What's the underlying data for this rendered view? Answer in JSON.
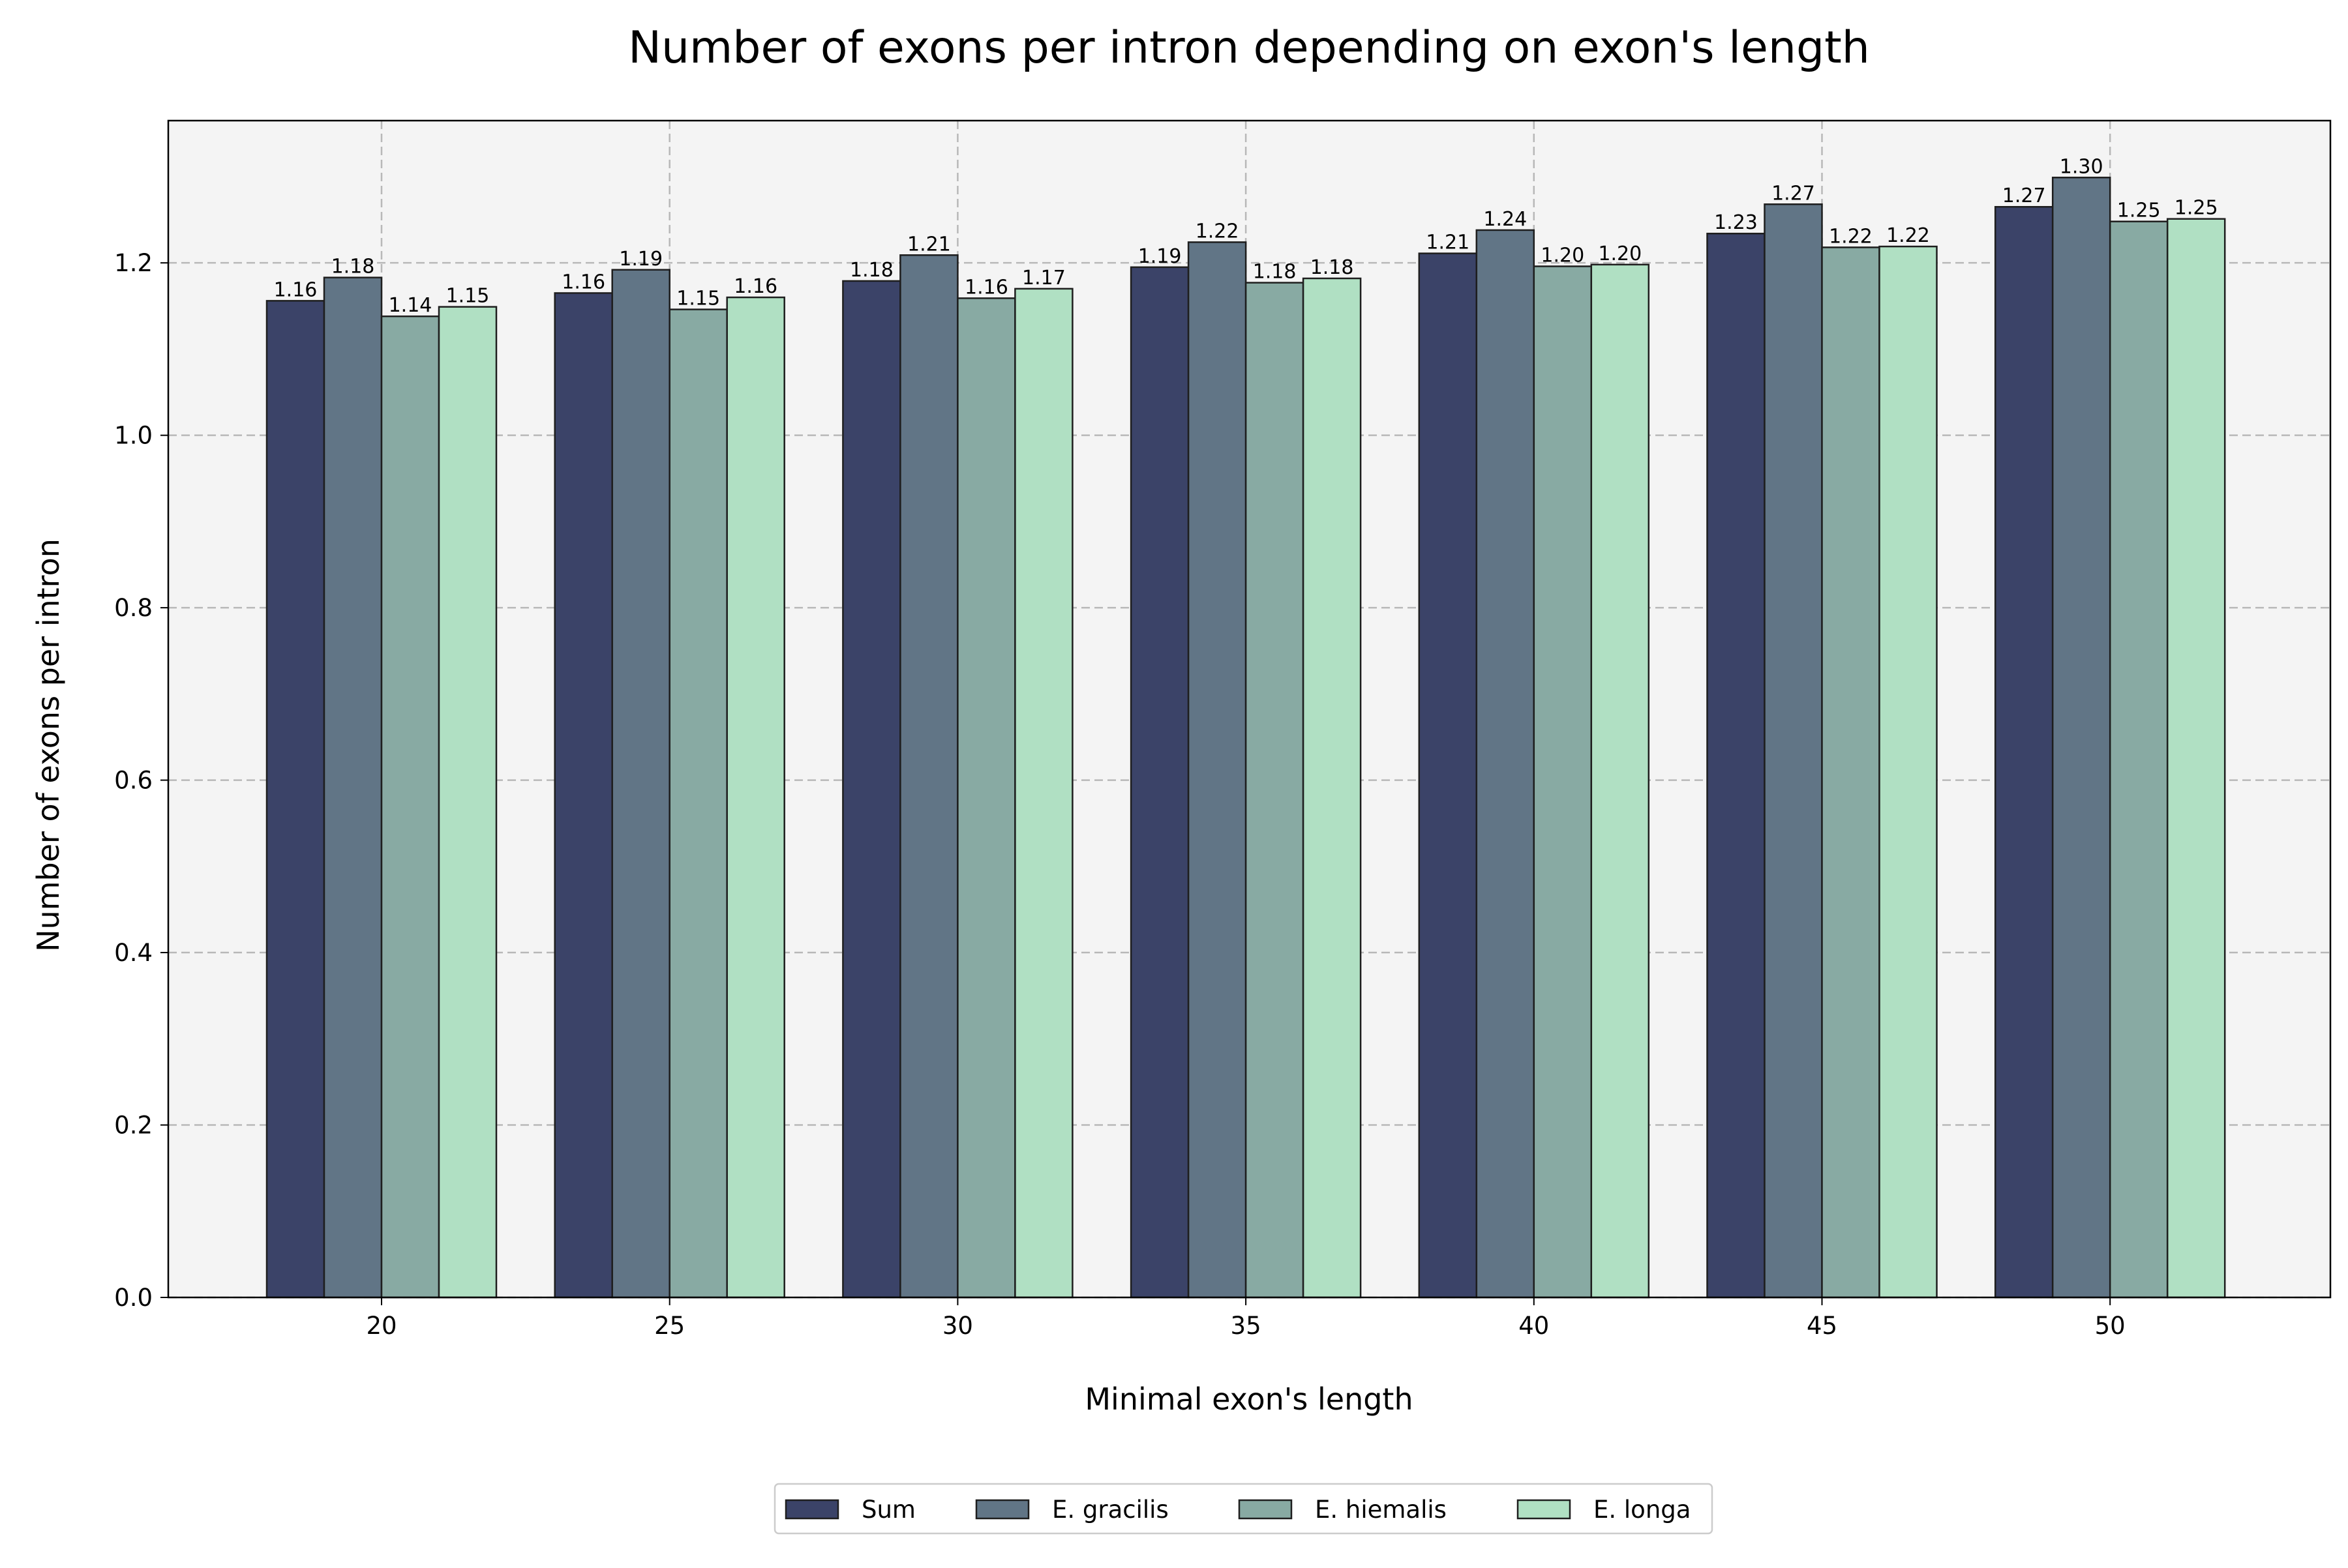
{
  "chart_data": {
    "type": "bar",
    "title": "Number of exons per intron depending on exon's length",
    "xlabel": "Minimal exon's length",
    "ylabel": "Number of exons per intron",
    "categories": [
      "20",
      "25",
      "30",
      "35",
      "40",
      "45",
      "50"
    ],
    "ylim": [
      0,
      1.365
    ],
    "yticks": [
      "0.0",
      "0.2",
      "0.4",
      "0.6",
      "0.8",
      "1.0",
      "1.2"
    ],
    "grid": true,
    "legend_position": "bottom-center",
    "plot_background": "#f4f4f4",
    "series": [
      {
        "name": "Sum",
        "color": "#3b4368",
        "values": [
          1.156,
          1.165,
          1.179,
          1.195,
          1.211,
          1.234,
          1.265
        ],
        "labels": [
          "1.16",
          "1.16",
          "1.18",
          "1.19",
          "1.21",
          "1.23",
          "1.27"
        ]
      },
      {
        "name": "E. gracilis",
        "color": "#617586",
        "values": [
          1.183,
          1.192,
          1.209,
          1.224,
          1.238,
          1.268,
          1.299
        ],
        "labels": [
          "1.18",
          "1.19",
          "1.21",
          "1.22",
          "1.24",
          "1.27",
          "1.30"
        ]
      },
      {
        "name": "E. hiemalis",
        "color": "#88aaa3",
        "values": [
          1.138,
          1.146,
          1.159,
          1.177,
          1.196,
          1.218,
          1.248
        ],
        "labels": [
          "1.14",
          "1.15",
          "1.16",
          "1.18",
          "1.20",
          "1.22",
          "1.25"
        ]
      },
      {
        "name": "E. longa",
        "color": "#b0e0c3",
        "values": [
          1.149,
          1.16,
          1.17,
          1.182,
          1.198,
          1.219,
          1.251
        ],
        "labels": [
          "1.15",
          "1.16",
          "1.17",
          "1.18",
          "1.20",
          "1.22",
          "1.25"
        ]
      }
    ]
  }
}
